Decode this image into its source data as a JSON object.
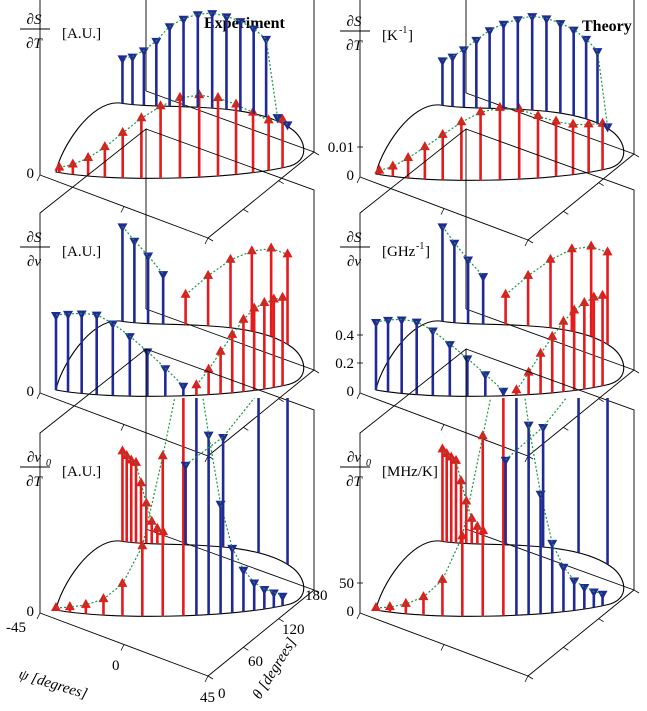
{
  "labels": {
    "experiment_title": "Experiment",
    "theory_title": "Theory",
    "psi_axis": "ψ [degrees]",
    "theta_axis": "θ [degrees]"
  },
  "colors": {
    "up_stem": "#e41a1c",
    "down_stem": "#1f2a96",
    "guide": "#1a9641",
    "frame": "#000000"
  },
  "chart_data": [
    {
      "type": "3d-stem",
      "column": "Experiment",
      "row": "dS/dT",
      "numerator": "∂S",
      "denominator": "∂T",
      "unit": "[A.U.]",
      "z_ticks": [
        "0"
      ],
      "series": [
        {
          "marker": "up",
          "color": "#e41a1c",
          "values": [
            0.05,
            0.1,
            0.18,
            0.3,
            0.45,
            0.6,
            0.72,
            0.8,
            0.82,
            0.78,
            0.7,
            0.6,
            0.5,
            0.48
          ]
        },
        {
          "marker": "down",
          "color": "#1f2a96",
          "values": [
            0.02,
            0.04,
            0.78,
            0.85,
            0.9,
            0.93,
            0.95,
            0.93,
            0.88,
            0.8,
            0.65,
            0.55,
            0.48,
            0.45
          ]
        }
      ]
    },
    {
      "type": "3d-stem",
      "column": "Theory",
      "row": "dS/dT",
      "numerator": "∂S",
      "denominator": "∂T",
      "unit": "[K",
      "unit_sup": "-1",
      "unit_close": "]",
      "z_ticks": [
        "0",
        "0.01"
      ],
      "series": [
        {
          "marker": "up",
          "color": "#e41a1c",
          "values": [
            0.04,
            0.1,
            0.2,
            0.32,
            0.45,
            0.58,
            0.68,
            0.72,
            0.7,
            0.62,
            0.55,
            0.5,
            0.48,
            0.46
          ]
        },
        {
          "marker": "down",
          "color": "#1f2a96",
          "values": [
            0.02,
            0.72,
            0.8,
            0.86,
            0.9,
            0.93,
            0.94,
            0.9,
            0.85,
            0.78,
            0.68,
            0.58,
            0.5,
            0.45
          ]
        }
      ]
    },
    {
      "type": "3d-stem",
      "column": "Experiment",
      "row": "dS/dnu",
      "numerator": "∂S",
      "denominator": "∂ν",
      "unit": "[A.U.]",
      "z_ticks": [
        "0"
      ],
      "series": [
        {
          "marker": "down",
          "color": "#1f2a96",
          "values": [
            0.75,
            0.78,
            0.8,
            0.8,
            0.72,
            0.6,
            0.45,
            0.28,
            0.1
          ]
        },
        {
          "marker": "up",
          "color": "#e41a1c",
          "values": [
            0.1,
            0.25,
            0.42,
            0.58,
            0.72,
            0.82,
            0.86,
            0.88,
            0.88
          ]
        },
        {
          "marker": "down",
          "color": "#1f2a96",
          "values": [
            0.95,
            0.82,
            0.68,
            0.5
          ]
        },
        {
          "marker": "up",
          "color": "#e41a1c",
          "values": [
            0.3,
            0.5,
            0.68,
            0.8,
            0.88,
            0.9
          ]
        }
      ]
    },
    {
      "type": "3d-stem",
      "column": "Theory",
      "row": "dS/dnu",
      "numerator": "∂S",
      "denominator": "∂ν",
      "unit": "[GHz",
      "unit_sup": "-1",
      "unit_close": "]",
      "z_ticks": [
        "0",
        "0.2",
        "0.4"
      ],
      "series": [
        {
          "marker": "down",
          "color": "#1f2a96",
          "values": [
            0.68,
            0.72,
            0.74,
            0.73,
            0.65,
            0.52,
            0.38,
            0.22,
            0.05
          ]
        },
        {
          "marker": "up",
          "color": "#e41a1c",
          "values": [
            0.05,
            0.22,
            0.4,
            0.56,
            0.7,
            0.8,
            0.86,
            0.9,
            0.9
          ]
        },
        {
          "marker": "down",
          "color": "#1f2a96",
          "values": [
            0.95,
            0.8,
            0.64,
            0.48
          ]
        },
        {
          "marker": "up",
          "color": "#e41a1c",
          "values": [
            0.3,
            0.5,
            0.68,
            0.82,
            0.9,
            0.92
          ]
        }
      ]
    },
    {
      "type": "3d-stem",
      "column": "Experiment",
      "row": "dnu0/dT",
      "numerator": "∂ν",
      "numerator_sub": "0",
      "denominator": "∂T",
      "unit": "[A.U.]",
      "z_ticks": [
        "0"
      ],
      "series": [
        {
          "marker": "up",
          "color": "#e41a1c",
          "values": [
            0.02,
            0.05,
            0.09,
            0.16,
            0.32,
            0.7,
            1.6,
            2.6
          ]
        },
        {
          "marker": "down",
          "color": "#1f2a96",
          "values": [
            2.6,
            1.8,
            1.1,
            0.65,
            0.42,
            0.28,
            0.2,
            0.15,
            0.1
          ]
        },
        {
          "marker": "up",
          "color": "#e41a1c",
          "values": [
            0.9,
            0.86,
            0.82,
            0.8,
            0.6,
            0.4,
            0.22,
            0.15,
            0.12
          ]
        },
        {
          "marker": "down",
          "color": "#1f2a96",
          "values": [
            0.8,
            1.1,
            1.6,
            2.6
          ]
        }
      ]
    },
    {
      "type": "3d-stem",
      "column": "Theory",
      "row": "dnu0/dT",
      "numerator": "∂ν",
      "numerator_sub": "0",
      "denominator": "∂T",
      "unit": "[MHz/K]",
      "z_ticks": [
        "0",
        "50"
      ],
      "series": [
        {
          "marker": "up",
          "color": "#e41a1c",
          "values": [
            0.02,
            0.05,
            0.1,
            0.18,
            0.36,
            0.8,
            1.8,
            2.8
          ]
        },
        {
          "marker": "down",
          "color": "#1f2a96",
          "values": [
            2.8,
            1.9,
            1.2,
            0.7,
            0.45,
            0.3,
            0.22,
            0.16,
            0.12
          ]
        },
        {
          "marker": "up",
          "color": "#e41a1c",
          "values": [
            0.92,
            0.88,
            0.85,
            0.82,
            0.62,
            0.42,
            0.25,
            0.17,
            0.13
          ]
        },
        {
          "marker": "down",
          "color": "#1f2a96",
          "values": [
            0.85,
            1.2,
            1.7,
            2.8
          ]
        }
      ]
    }
  ],
  "axes": {
    "psi_ticks": [
      "-45",
      "0",
      "45"
    ],
    "theta_ticks": [
      "0",
      "60",
      "120",
      "180"
    ]
  }
}
